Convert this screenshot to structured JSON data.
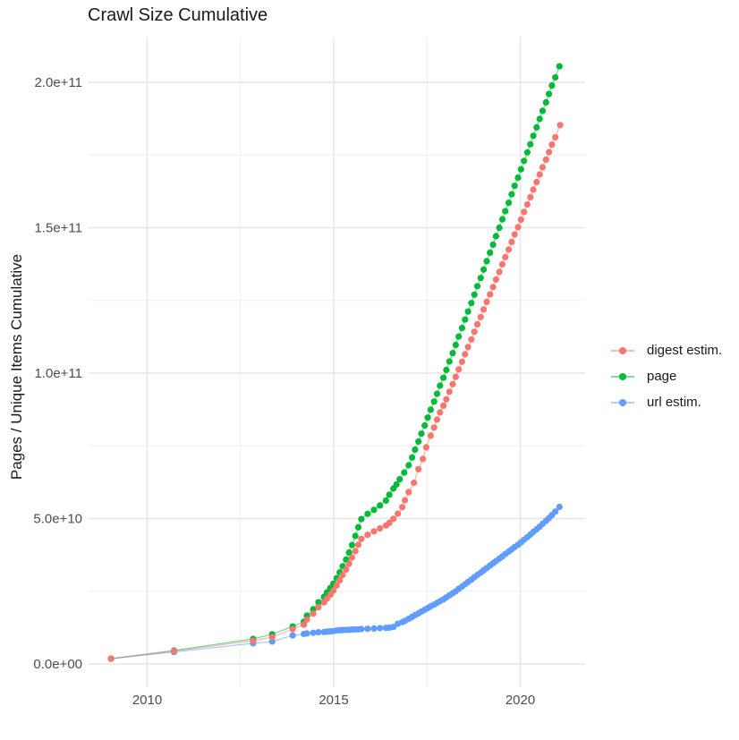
{
  "title": "Crawl Size Cumulative",
  "legend": {
    "items": [
      {
        "label": "digest estim.",
        "color": "#F8766D"
      },
      {
        "label": "page",
        "color": "#00BA38"
      },
      {
        "label": "url estim.",
        "color": "#619CFF"
      }
    ]
  },
  "colors": {
    "digest": "#F8766D",
    "page": "#00BA38",
    "url": "#619CFF",
    "grid_major": "#e6e6e6",
    "grid_minor": "#f0f0f0",
    "tick_text": "#4d4d4d",
    "title_text": "#1a1a1a",
    "background": "#ffffff"
  },
  "chart_data": {
    "type": "scatter",
    "title": "Crawl Size Cumulative",
    "xlabel": "",
    "ylabel": "Pages / Unique Items Cumulative",
    "xlim": [
      2008.4,
      2021.7
    ],
    "ylim": [
      -8500000000,
      216000000000
    ],
    "x_ticks": [
      2010,
      2015,
      2020
    ],
    "x_tick_labels": [
      "2010",
      "2015",
      "2020"
    ],
    "x_minor_ticks": [
      2012.5,
      2017.5
    ],
    "y_ticks_e9": [
      0,
      50,
      100,
      150,
      200
    ],
    "y_tick_labels": [
      "0.0e+00",
      "5.0e+10",
      "1.0e+11",
      "1.5e+11",
      "2.0e+11"
    ],
    "y_minor_ticks_e9": [
      25,
      75,
      125,
      175
    ],
    "grid": "major+minor",
    "legend_position": "right",
    "y_value_unit": "1e9 items (billions)",
    "series": [
      {
        "name": "digest estim.",
        "color": "#F8766D",
        "points_year_e9": [
          [
            2009.03,
            1.8
          ],
          [
            2010.72,
            4.4
          ],
          [
            2012.84,
            8.0
          ],
          [
            2013.35,
            9.2
          ],
          [
            2013.9,
            12.0
          ],
          [
            2014.2,
            13.5
          ],
          [
            2014.28,
            15.3
          ],
          [
            2014.45,
            17.3
          ],
          [
            2014.59,
            19.5
          ],
          [
            2014.74,
            21.2
          ],
          [
            2014.82,
            22.5
          ],
          [
            2014.91,
            23.8
          ],
          [
            2014.99,
            25.2
          ],
          [
            2015.08,
            27.0
          ],
          [
            2015.16,
            28.8
          ],
          [
            2015.24,
            30.6
          ],
          [
            2015.33,
            32.5
          ],
          [
            2015.41,
            34.5
          ],
          [
            2015.49,
            36.6
          ],
          [
            2015.58,
            38.8
          ],
          [
            2015.66,
            41.0
          ],
          [
            2015.74,
            43.0
          ],
          [
            2015.91,
            44.4
          ],
          [
            2016.08,
            45.6
          ],
          [
            2016.24,
            46.6
          ],
          [
            2016.4,
            47.6
          ],
          [
            2016.49,
            48.5
          ],
          [
            2016.6,
            49.9
          ],
          [
            2016.72,
            51.7
          ],
          [
            2016.84,
            53.9
          ],
          [
            2016.91,
            56.3
          ],
          [
            2017.01,
            59.1
          ],
          [
            2017.15,
            62.3
          ],
          [
            2017.27,
            67.0
          ],
          [
            2017.39,
            70.5
          ],
          [
            2017.48,
            74.5
          ],
          [
            2017.6,
            78.5
          ],
          [
            2017.69,
            81.3
          ],
          [
            2017.77,
            84.0
          ],
          [
            2017.85,
            86.5
          ],
          [
            2017.94,
            88.8
          ],
          [
            2018.02,
            91.0
          ],
          [
            2018.1,
            93.6
          ],
          [
            2018.19,
            96.2
          ],
          [
            2018.27,
            98.7
          ],
          [
            2018.35,
            101.3
          ],
          [
            2018.44,
            103.9
          ],
          [
            2018.52,
            106.5
          ],
          [
            2018.6,
            109.0
          ],
          [
            2018.69,
            111.6
          ],
          [
            2018.77,
            114.2
          ],
          [
            2018.85,
            116.8
          ],
          [
            2018.94,
            119.3
          ],
          [
            2019.02,
            121.9
          ],
          [
            2019.1,
            124.5
          ],
          [
            2019.19,
            127.1
          ],
          [
            2019.27,
            129.6
          ],
          [
            2019.35,
            132.2
          ],
          [
            2019.44,
            134.8
          ],
          [
            2019.52,
            137.4
          ],
          [
            2019.6,
            139.9
          ],
          [
            2019.69,
            142.5
          ],
          [
            2019.77,
            145.1
          ],
          [
            2019.85,
            147.7
          ],
          [
            2019.94,
            150.2
          ],
          [
            2020.02,
            152.8
          ],
          [
            2020.1,
            155.4
          ],
          [
            2020.19,
            158.0
          ],
          [
            2020.27,
            160.5
          ],
          [
            2020.35,
            163.1
          ],
          [
            2020.44,
            165.7
          ],
          [
            2020.52,
            168.3
          ],
          [
            2020.6,
            170.8
          ],
          [
            2020.69,
            173.4
          ],
          [
            2020.77,
            176.0
          ],
          [
            2020.85,
            178.6
          ],
          [
            2020.94,
            181.1
          ],
          [
            2021.07,
            185.3
          ]
        ]
      },
      {
        "name": "page",
        "color": "#00BA38",
        "points_year_e9": [
          [
            2009.03,
            1.8
          ],
          [
            2010.72,
            4.6
          ],
          [
            2012.84,
            8.6
          ],
          [
            2013.35,
            10.2
          ],
          [
            2013.9,
            12.9
          ],
          [
            2014.2,
            14.5
          ],
          [
            2014.28,
            16.6
          ],
          [
            2014.45,
            18.8
          ],
          [
            2014.59,
            21.2
          ],
          [
            2014.74,
            23.1
          ],
          [
            2014.82,
            24.6
          ],
          [
            2014.91,
            26.1
          ],
          [
            2014.99,
            27.6
          ],
          [
            2015.08,
            29.5
          ],
          [
            2015.16,
            31.5
          ],
          [
            2015.24,
            33.6
          ],
          [
            2015.33,
            35.9
          ],
          [
            2015.41,
            38.3
          ],
          [
            2015.49,
            40.9
          ],
          [
            2015.58,
            44.0
          ],
          [
            2015.66,
            47.0
          ],
          [
            2015.74,
            49.8
          ],
          [
            2015.91,
            51.6
          ],
          [
            2016.08,
            53.0
          ],
          [
            2016.24,
            54.5
          ],
          [
            2016.4,
            56.2
          ],
          [
            2016.49,
            58.2
          ],
          [
            2016.6,
            60.3
          ],
          [
            2016.68,
            61.7
          ],
          [
            2016.77,
            63.5
          ],
          [
            2016.89,
            65.8
          ],
          [
            2017.01,
            68.3
          ],
          [
            2017.1,
            71.0
          ],
          [
            2017.18,
            73.7
          ],
          [
            2017.27,
            76.5
          ],
          [
            2017.35,
            79.2
          ],
          [
            2017.44,
            82.0
          ],
          [
            2017.52,
            84.7
          ],
          [
            2017.6,
            87.4
          ],
          [
            2017.69,
            90.2
          ],
          [
            2017.77,
            92.9
          ],
          [
            2017.85,
            95.7
          ],
          [
            2017.94,
            98.4
          ],
          [
            2018.02,
            101.1
          ],
          [
            2018.1,
            104.0
          ],
          [
            2018.19,
            106.9
          ],
          [
            2018.27,
            109.7
          ],
          [
            2018.35,
            112.6
          ],
          [
            2018.44,
            115.5
          ],
          [
            2018.52,
            118.4
          ],
          [
            2018.6,
            121.2
          ],
          [
            2018.69,
            124.1
          ],
          [
            2018.77,
            127.0
          ],
          [
            2018.85,
            129.9
          ],
          [
            2018.94,
            132.7
          ],
          [
            2019.02,
            135.6
          ],
          [
            2019.1,
            138.5
          ],
          [
            2019.19,
            141.4
          ],
          [
            2019.27,
            144.2
          ],
          [
            2019.35,
            147.1
          ],
          [
            2019.44,
            150.0
          ],
          [
            2019.52,
            152.9
          ],
          [
            2019.6,
            155.7
          ],
          [
            2019.69,
            158.6
          ],
          [
            2019.77,
            161.5
          ],
          [
            2019.85,
            164.4
          ],
          [
            2019.94,
            167.2
          ],
          [
            2020.02,
            170.1
          ],
          [
            2020.1,
            173.0
          ],
          [
            2020.19,
            175.9
          ],
          [
            2020.27,
            178.7
          ],
          [
            2020.35,
            181.6
          ],
          [
            2020.44,
            184.5
          ],
          [
            2020.52,
            187.4
          ],
          [
            2020.6,
            190.2
          ],
          [
            2020.69,
            193.1
          ],
          [
            2020.77,
            196.0
          ],
          [
            2020.85,
            198.9
          ],
          [
            2020.94,
            201.7
          ],
          [
            2021.05,
            205.5
          ]
        ]
      },
      {
        "name": "url estim.",
        "color": "#619CFF",
        "points_year_e9": [
          [
            2009.03,
            1.8
          ],
          [
            2010.72,
            4.1
          ],
          [
            2012.84,
            7.1
          ],
          [
            2013.35,
            7.7
          ],
          [
            2013.9,
            9.8
          ],
          [
            2014.2,
            10.3
          ],
          [
            2014.28,
            10.5
          ],
          [
            2014.45,
            10.7
          ],
          [
            2014.59,
            10.9
          ],
          [
            2014.74,
            11.0
          ],
          [
            2014.82,
            11.1
          ],
          [
            2014.91,
            11.2
          ],
          [
            2014.99,
            11.3
          ],
          [
            2015.08,
            11.5
          ],
          [
            2015.16,
            11.6
          ],
          [
            2015.24,
            11.65
          ],
          [
            2015.33,
            11.7
          ],
          [
            2015.41,
            11.75
          ],
          [
            2015.49,
            11.8
          ],
          [
            2015.58,
            11.85
          ],
          [
            2015.66,
            11.9
          ],
          [
            2015.74,
            12.0
          ],
          [
            2015.91,
            12.1
          ],
          [
            2016.08,
            12.2
          ],
          [
            2016.24,
            12.3
          ],
          [
            2016.4,
            12.4
          ],
          [
            2016.49,
            12.5
          ],
          [
            2016.6,
            12.7
          ],
          [
            2016.72,
            13.8
          ],
          [
            2016.84,
            14.4
          ],
          [
            2016.91,
            14.8
          ],
          [
            2017.01,
            15.5
          ],
          [
            2017.1,
            16.2
          ],
          [
            2017.18,
            16.8
          ],
          [
            2017.27,
            17.4
          ],
          [
            2017.35,
            18.0
          ],
          [
            2017.44,
            18.6
          ],
          [
            2017.52,
            19.2
          ],
          [
            2017.6,
            19.8
          ],
          [
            2017.69,
            20.4
          ],
          [
            2017.77,
            21.0
          ],
          [
            2017.85,
            21.6
          ],
          [
            2017.94,
            22.2
          ],
          [
            2018.02,
            22.9
          ],
          [
            2018.1,
            23.6
          ],
          [
            2018.19,
            24.3
          ],
          [
            2018.27,
            25.0
          ],
          [
            2018.35,
            25.8
          ],
          [
            2018.44,
            26.6
          ],
          [
            2018.52,
            27.4
          ],
          [
            2018.6,
            28.2
          ],
          [
            2018.69,
            29.0
          ],
          [
            2018.77,
            29.8
          ],
          [
            2018.85,
            30.6
          ],
          [
            2018.94,
            31.4
          ],
          [
            2019.02,
            32.2
          ],
          [
            2019.1,
            33.0
          ],
          [
            2019.19,
            33.8
          ],
          [
            2019.27,
            34.6
          ],
          [
            2019.35,
            35.4
          ],
          [
            2019.44,
            36.2
          ],
          [
            2019.52,
            37.0
          ],
          [
            2019.6,
            37.8
          ],
          [
            2019.69,
            38.6
          ],
          [
            2019.77,
            39.4
          ],
          [
            2019.85,
            40.2
          ],
          [
            2019.94,
            41.0
          ],
          [
            2020.02,
            41.8
          ],
          [
            2020.1,
            42.7
          ],
          [
            2020.19,
            43.6
          ],
          [
            2020.27,
            44.5
          ],
          [
            2020.35,
            45.4
          ],
          [
            2020.44,
            46.3
          ],
          [
            2020.52,
            47.2
          ],
          [
            2020.6,
            48.2
          ],
          [
            2020.69,
            49.2
          ],
          [
            2020.77,
            50.2
          ],
          [
            2020.85,
            51.2
          ],
          [
            2020.94,
            52.4
          ],
          [
            2021.05,
            54.0
          ]
        ]
      }
    ]
  }
}
